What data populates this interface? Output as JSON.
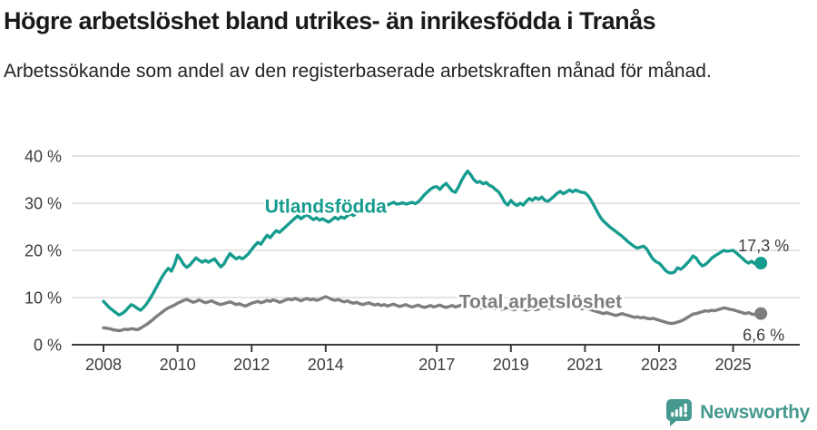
{
  "header": {
    "title": "Högre arbetslöshet bland utrikes- än inrikesfödda i Tranås",
    "subtitle": "Arbetssökande som andel av den registerbaserade arbetskraften månad för månad."
  },
  "footer": {
    "brand": "Newsworthy",
    "logo_icon": "bar-chart-speech-bubble-icon",
    "brand_color": "#45998f"
  },
  "colors": {
    "foreign_born_line": "#169c8f",
    "total_line": "#7e7e7e",
    "axis_text": "#3c3c3c",
    "gridline": "#dcdcdc",
    "title_text": "#1a1a1a"
  },
  "chart_data": {
    "type": "line",
    "title": "Högre arbetslöshet bland utrikes- än inrikesfödda i Tranås",
    "subtitle": "Arbetssökande som andel av den registerbaserade arbetskraften månad för månad.",
    "x_start_year": 2008,
    "x_interval": "monthly",
    "grid": "horizontal",
    "legend_position": "inline-labels",
    "x_axis": {
      "tick_years": [
        2008,
        2010,
        2012,
        2014,
        2017,
        2019,
        2021,
        2023,
        2025
      ]
    },
    "y_axis": {
      "tick_values": [
        0,
        10,
        20,
        30,
        40
      ],
      "tick_labels": [
        "0 %",
        "10 %",
        "20 %",
        "30 %",
        "40 %"
      ],
      "range": [
        0,
        40
      ],
      "unit": "%"
    },
    "series": [
      {
        "name": "Utlandsfödda",
        "color": "#169c8f",
        "inline_label": {
          "text": "Utlandsfödda",
          "year": 2014.0,
          "value": 29.4
        },
        "end_label": {
          "text": "17,3 %",
          "position": "above"
        },
        "last_value": 17.3,
        "values": [
          9.2,
          8.5,
          7.8,
          7.3,
          6.8,
          6.3,
          6.6,
          7.1,
          7.8,
          8.5,
          8.2,
          7.7,
          7.3,
          7.9,
          8.7,
          9.7,
          10.8,
          12.0,
          13.2,
          14.4,
          15.4,
          16.2,
          15.6,
          17.0,
          19.0,
          18.1,
          17.0,
          16.4,
          16.9,
          17.7,
          18.4,
          17.9,
          17.5,
          17.9,
          17.5,
          17.9,
          18.2,
          17.3,
          16.5,
          17.1,
          18.3,
          19.3,
          18.7,
          18.2,
          18.6,
          18.2,
          18.7,
          19.3,
          20.2,
          21.0,
          21.7,
          21.3,
          22.3,
          23.2,
          22.7,
          23.5,
          24.2,
          23.8,
          24.4,
          25.0,
          25.6,
          26.2,
          26.8,
          27.3,
          26.7,
          27.2,
          27.6,
          27.0,
          26.5,
          26.9,
          26.4,
          26.7,
          26.3,
          26.0,
          26.5,
          27.0,
          26.6,
          27.1,
          26.8,
          27.3,
          27.8,
          27.4,
          27.9,
          28.3,
          28.0,
          28.5,
          29.0,
          29.4,
          29.8,
          30.1,
          29.7,
          30.0,
          29.6,
          29.9,
          30.2,
          29.8,
          29.9,
          30.1,
          29.8,
          30.0,
          30.2,
          29.9,
          30.3,
          31.0,
          31.8,
          32.4,
          33.0,
          33.4,
          33.5,
          32.9,
          33.7,
          34.2,
          33.4,
          32.6,
          32.3,
          33.4,
          34.8,
          35.9,
          36.8,
          36.0,
          35.0,
          34.4,
          34.6,
          34.1,
          34.4,
          33.8,
          33.5,
          32.9,
          32.4,
          31.4,
          30.2,
          29.6,
          30.6,
          29.9,
          29.5,
          30.0,
          29.6,
          30.4,
          31.0,
          30.6,
          31.2,
          30.8,
          31.3,
          30.6,
          30.4,
          30.9,
          31.5,
          32.1,
          32.5,
          32.0,
          32.4,
          32.8,
          32.4,
          32.8,
          32.5,
          32.3,
          32.2,
          31.6,
          30.6,
          29.4,
          28.2,
          27.0,
          26.2,
          25.6,
          25.0,
          24.5,
          24.0,
          23.5,
          23.0,
          22.4,
          21.8,
          21.3,
          20.8,
          20.5,
          20.7,
          20.9,
          20.3,
          19.2,
          18.2,
          17.6,
          17.3,
          16.6,
          15.8,
          15.3,
          15.2,
          15.4,
          16.3,
          16.0,
          16.5,
          17.2,
          17.9,
          18.8,
          18.4,
          17.4,
          16.7,
          17.0,
          17.6,
          18.3,
          18.8,
          19.2,
          19.6,
          20.0,
          19.8,
          19.9,
          20.0,
          19.5,
          18.9,
          18.3,
          17.7,
          17.3,
          17.7,
          17.2,
          17.5,
          17.3
        ]
      },
      {
        "name": "Total arbetslöshet",
        "color": "#7e7e7e",
        "inline_label": {
          "text": "Total arbetslöshet",
          "year": 2019.8,
          "value": 9.2
        },
        "end_label": {
          "text": "6,6 %",
          "position": "below"
        },
        "last_value": 6.6,
        "values": [
          3.6,
          3.5,
          3.4,
          3.2,
          3.1,
          3.0,
          3.1,
          3.3,
          3.2,
          3.4,
          3.3,
          3.2,
          3.5,
          3.9,
          4.3,
          4.8,
          5.3,
          5.9,
          6.4,
          6.9,
          7.4,
          7.8,
          8.1,
          8.4,
          8.8,
          9.1,
          9.4,
          9.6,
          9.3,
          9.0,
          9.2,
          9.5,
          9.2,
          8.9,
          9.1,
          9.3,
          9.0,
          8.7,
          8.5,
          8.7,
          8.9,
          9.1,
          8.8,
          8.5,
          8.7,
          8.4,
          8.2,
          8.5,
          8.8,
          9.0,
          9.2,
          8.9,
          9.1,
          9.4,
          9.2,
          9.5,
          9.3,
          9.0,
          9.2,
          9.5,
          9.7,
          9.5,
          9.8,
          9.6,
          9.3,
          9.6,
          9.8,
          9.5,
          9.7,
          9.4,
          9.6,
          9.9,
          10.2,
          9.9,
          9.6,
          9.4,
          9.6,
          9.3,
          9.1,
          9.3,
          9.0,
          8.8,
          9.0,
          8.7,
          8.5,
          8.7,
          8.9,
          8.6,
          8.4,
          8.6,
          8.3,
          8.5,
          8.2,
          8.4,
          8.6,
          8.3,
          8.1,
          8.3,
          8.5,
          8.2,
          8.0,
          8.2,
          8.4,
          8.1,
          7.9,
          8.1,
          8.3,
          8.0,
          8.2,
          8.4,
          8.1,
          7.9,
          8.1,
          8.3,
          8.0,
          8.2,
          8.4,
          8.6,
          8.4,
          8.2,
          8.0,
          8.2,
          7.9,
          7.7,
          7.9,
          8.1,
          7.8,
          7.6,
          7.8,
          7.5,
          7.7,
          7.9,
          7.6,
          7.4,
          7.6,
          7.8,
          7.5,
          7.3,
          7.5,
          7.7,
          7.4,
          7.6,
          7.8,
          8.0,
          7.8,
          7.6,
          7.9,
          8.4,
          8.7,
          8.5,
          8.3,
          8.5,
          8.2,
          8.0,
          7.8,
          7.6,
          7.8,
          7.6,
          7.4,
          7.2,
          7.0,
          6.8,
          6.6,
          6.8,
          6.6,
          6.4,
          6.2,
          6.4,
          6.6,
          6.4,
          6.2,
          6.0,
          5.8,
          5.9,
          5.7,
          5.8,
          5.6,
          5.5,
          5.6,
          5.4,
          5.2,
          5.0,
          4.8,
          4.6,
          4.5,
          4.6,
          4.8,
          5.0,
          5.3,
          5.7,
          6.1,
          6.5,
          6.6,
          6.8,
          7.0,
          7.2,
          7.1,
          7.3,
          7.2,
          7.4,
          7.6,
          7.8,
          7.7,
          7.5,
          7.4,
          7.2,
          7.0,
          6.8,
          6.6,
          6.8,
          6.5,
          6.4,
          6.6,
          6.6
        ]
      }
    ]
  }
}
